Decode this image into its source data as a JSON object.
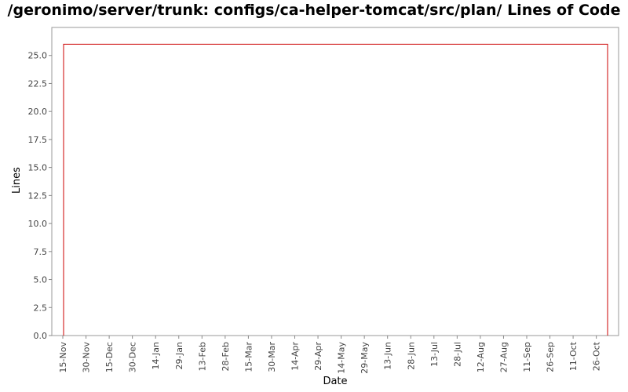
{
  "chart_data": {
    "type": "line",
    "title": "/geronimo/server/trunk: configs/ca-helper-tomcat/src/plan/ Lines of Code",
    "xlabel": "Date",
    "ylabel": "Lines",
    "ylim": [
      0,
      27.5
    ],
    "y_ticks": [
      "0.0",
      "2.5",
      "5.0",
      "7.5",
      "10.0",
      "12.5",
      "15.0",
      "17.5",
      "20.0",
      "22.5",
      "25.0"
    ],
    "x_ticks": [
      "15-Nov",
      "30-Nov",
      "15-Dec",
      "30-Dec",
      "14-Jan",
      "29-Jan",
      "13-Feb",
      "28-Feb",
      "15-Mar",
      "30-Mar",
      "14-Apr",
      "29-Apr",
      "14-May",
      "29-May",
      "13-Jun",
      "28-Jun",
      "13-Jul",
      "28-Jul",
      "12-Aug",
      "27-Aug",
      "11-Sep",
      "26-Sep",
      "11-Oct",
      "26-Oct"
    ],
    "grid": false,
    "series": [
      {
        "color": "#cc0000",
        "points": [
          {
            "x": "15-Nov",
            "y": 0
          },
          {
            "x": "15-Nov",
            "y": 26
          },
          {
            "x": "03-Nov",
            "y": 26,
            "x_is_end": true
          },
          {
            "x": "03-Nov",
            "y": 0,
            "x_is_end": true
          }
        ]
      }
    ]
  }
}
